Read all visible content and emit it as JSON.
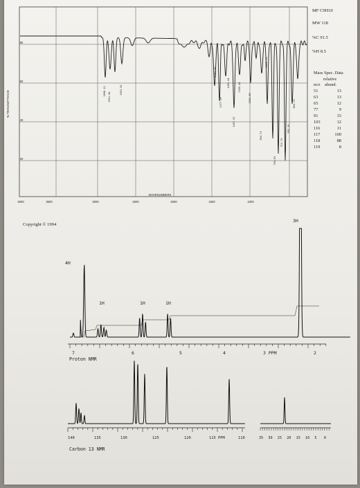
{
  "molecule": {
    "mf": "MF C9H10",
    "mw": "MW 118",
    "pct_c": "%C 91.5",
    "pct_h": "%H 8.5"
  },
  "mass_spec": {
    "title": "Mass Spec. Data",
    "header_relative": "relative",
    "col_mz": "m/z",
    "col_abund": "abund.",
    "rows": [
      {
        "mz": "51",
        "abund": "13"
      },
      {
        "mz": "63",
        "abund": "13"
      },
      {
        "mz": "65",
        "abund": "12"
      },
      {
        "mz": "77",
        "abund": "9"
      },
      {
        "mz": "91",
        "abund": "33"
      },
      {
        "mz": "103",
        "abund": "12"
      },
      {
        "mz": "116",
        "abund": "11"
      },
      {
        "mz": "117",
        "abund": "100"
      },
      {
        "mz": "118",
        "abund": "88"
      },
      {
        "mz": "119",
        "abund": "8"
      }
    ]
  },
  "ir": {
    "ylabel": "% TRANSMITTANCE",
    "xlabel": "WAVENUMBERS",
    "y_ticks": [
      "80",
      "60",
      "40",
      "20"
    ],
    "x_ticks": [
      "4000",
      "3500",
      "3000",
      "2500",
      "2000",
      "1500",
      "1000"
    ],
    "peak_labels": [
      "3008.13",
      "3011.04",
      "2922.55",
      "1453.85",
      "1377.19",
      "1493.04",
      "1457.61",
      "1350.44",
      "1052.69",
      "904.73",
      "1028.19",
      "765.92",
      "715.75",
      "992.36",
      "864.73"
    ]
  },
  "copyright": "Copyright © 1994",
  "proton_nmr": {
    "label": "Proton NMR",
    "integrations": [
      "3H",
      "4H",
      "1H",
      "1H",
      "1H"
    ],
    "axis_labels": [
      "7",
      "6",
      "5",
      "4",
      "3 PPM",
      "2"
    ]
  },
  "carbon_nmr": {
    "label": "Carbon 13 NMR",
    "axis_labels": [
      "140",
      "135",
      "130",
      "125",
      "120",
      "115 PPM",
      "110"
    ],
    "inset_axis_labels": [
      "35",
      "30",
      "25",
      "20",
      "15",
      "10",
      "5",
      "0"
    ]
  }
}
